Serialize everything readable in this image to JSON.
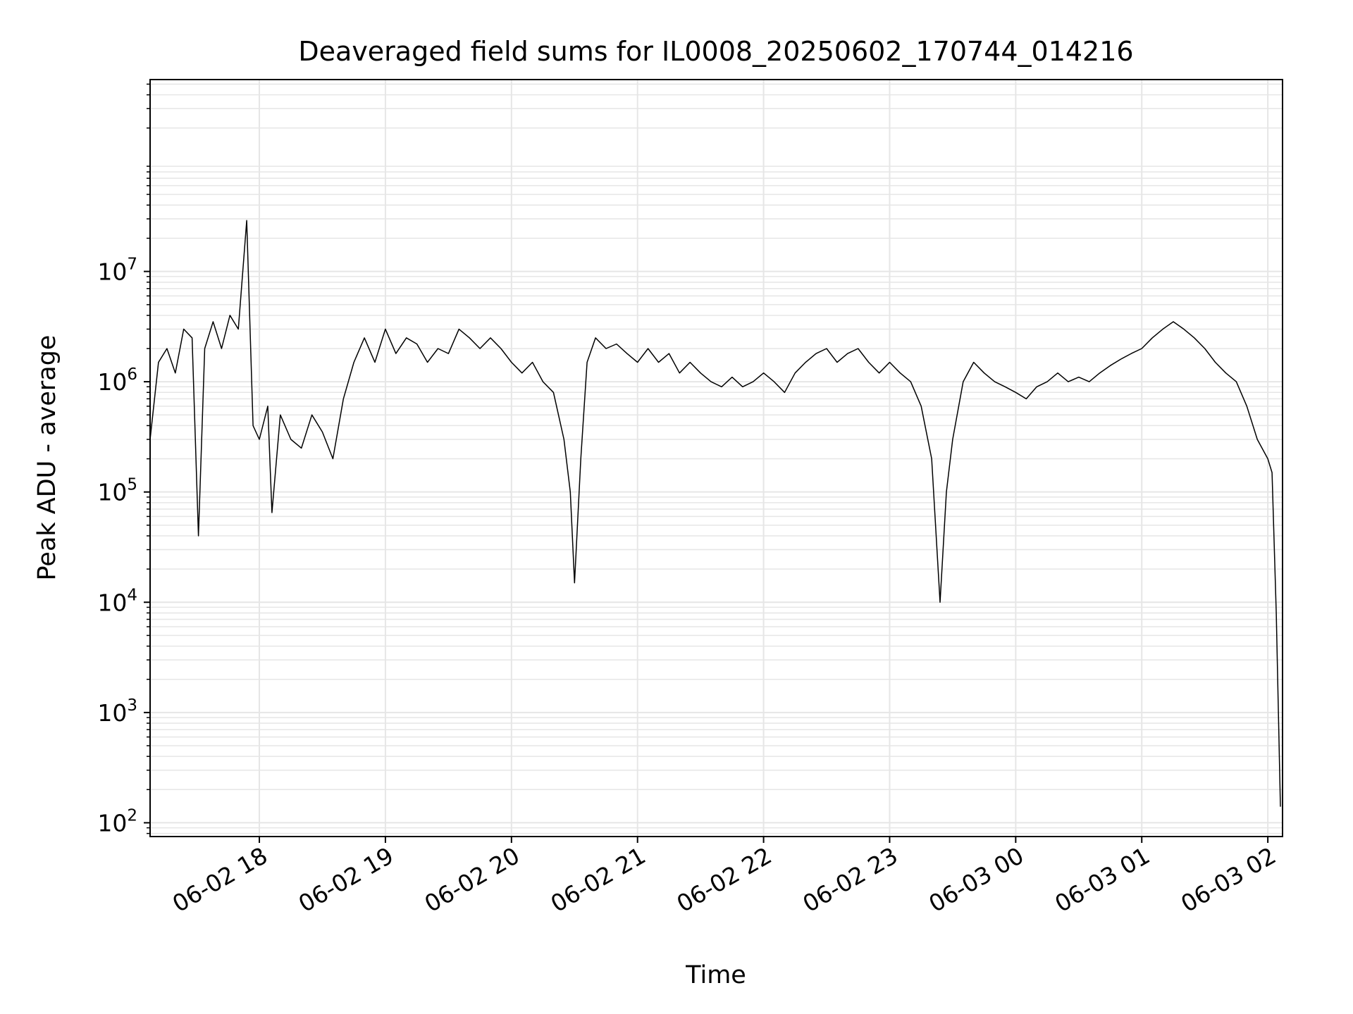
{
  "chart_data": {
    "type": "line",
    "title": "Deaveraged field sums for IL0008_20250602_170744_014216",
    "xlabel": "Time",
    "ylabel": "Peak ADU - average",
    "y_scale": "log",
    "ylim": [
      75,
      550000000
    ],
    "xlim": [
      "2025-06-02 17:08",
      "2025-06-03 02:07"
    ],
    "grid": true,
    "legend": "none",
    "line_color": "#000000",
    "grid_color": "#e6e6e6",
    "x_ticks": [
      {
        "t": "2025-06-02 18:00",
        "label": "06-02 18"
      },
      {
        "t": "2025-06-02 19:00",
        "label": "06-02 19"
      },
      {
        "t": "2025-06-02 20:00",
        "label": "06-02 20"
      },
      {
        "t": "2025-06-02 21:00",
        "label": "06-02 21"
      },
      {
        "t": "2025-06-02 22:00",
        "label": "06-02 22"
      },
      {
        "t": "2025-06-02 23:00",
        "label": "06-02 23"
      },
      {
        "t": "2025-06-03 00:00",
        "label": "06-03 00"
      },
      {
        "t": "2025-06-03 01:00",
        "label": "06-03 01"
      },
      {
        "t": "2025-06-03 02:00",
        "label": "06-03 02"
      }
    ],
    "y_ticks": [
      {
        "value": 100,
        "base": "10",
        "exp": "2"
      },
      {
        "value": 1000,
        "base": "10",
        "exp": "3"
      },
      {
        "value": 10000,
        "base": "10",
        "exp": "4"
      },
      {
        "value": 100000,
        "base": "10",
        "exp": "5"
      },
      {
        "value": 1000000,
        "base": "10",
        "exp": "6"
      },
      {
        "value": 10000000,
        "base": "10",
        "exp": "7"
      }
    ],
    "series": [
      {
        "points": [
          [
            "2025-06-02 17:08",
            300000
          ],
          [
            "2025-06-02 17:12",
            1500000
          ],
          [
            "2025-06-02 17:16",
            2000000
          ],
          [
            "2025-06-02 17:20",
            1200000
          ],
          [
            "2025-06-02 17:24",
            3000000
          ],
          [
            "2025-06-02 17:28",
            2500000
          ],
          [
            "2025-06-02 17:31",
            40000
          ],
          [
            "2025-06-02 17:34",
            2000000
          ],
          [
            "2025-06-02 17:38",
            3500000
          ],
          [
            "2025-06-02 17:42",
            2000000
          ],
          [
            "2025-06-02 17:46",
            4000000
          ],
          [
            "2025-06-02 17:50",
            3000000
          ],
          [
            "2025-06-02 17:54",
            29000000
          ],
          [
            "2025-06-02 17:57",
            400000
          ],
          [
            "2025-06-02 18:00",
            300000
          ],
          [
            "2025-06-02 18:04",
            600000
          ],
          [
            "2025-06-02 18:06",
            65000
          ],
          [
            "2025-06-02 18:10",
            500000
          ],
          [
            "2025-06-02 18:15",
            300000
          ],
          [
            "2025-06-02 18:20",
            250000
          ],
          [
            "2025-06-02 18:25",
            500000
          ],
          [
            "2025-06-02 18:30",
            350000
          ],
          [
            "2025-06-02 18:35",
            200000
          ],
          [
            "2025-06-02 18:40",
            700000
          ],
          [
            "2025-06-02 18:45",
            1500000
          ],
          [
            "2025-06-02 18:50",
            2500000
          ],
          [
            "2025-06-02 18:55",
            1500000
          ],
          [
            "2025-06-02 19:00",
            3000000
          ],
          [
            "2025-06-02 19:05",
            1800000
          ],
          [
            "2025-06-02 19:10",
            2500000
          ],
          [
            "2025-06-02 19:15",
            2200000
          ],
          [
            "2025-06-02 19:20",
            1500000
          ],
          [
            "2025-06-02 19:25",
            2000000
          ],
          [
            "2025-06-02 19:30",
            1800000
          ],
          [
            "2025-06-02 19:35",
            3000000
          ],
          [
            "2025-06-02 19:40",
            2500000
          ],
          [
            "2025-06-02 19:45",
            2000000
          ],
          [
            "2025-06-02 19:50",
            2500000
          ],
          [
            "2025-06-02 19:55",
            2000000
          ],
          [
            "2025-06-02 20:00",
            1500000
          ],
          [
            "2025-06-02 20:05",
            1200000
          ],
          [
            "2025-06-02 20:10",
            1500000
          ],
          [
            "2025-06-02 20:15",
            1000000
          ],
          [
            "2025-06-02 20:20",
            800000
          ],
          [
            "2025-06-02 20:25",
            300000
          ],
          [
            "2025-06-02 20:28",
            100000
          ],
          [
            "2025-06-02 20:30",
            15000
          ],
          [
            "2025-06-02 20:33",
            200000
          ],
          [
            "2025-06-02 20:36",
            1500000
          ],
          [
            "2025-06-02 20:40",
            2500000
          ],
          [
            "2025-06-02 20:45",
            2000000
          ],
          [
            "2025-06-02 20:50",
            2200000
          ],
          [
            "2025-06-02 20:55",
            1800000
          ],
          [
            "2025-06-02 21:00",
            1500000
          ],
          [
            "2025-06-02 21:05",
            2000000
          ],
          [
            "2025-06-02 21:10",
            1500000
          ],
          [
            "2025-06-02 21:15",
            1800000
          ],
          [
            "2025-06-02 21:20",
            1200000
          ],
          [
            "2025-06-02 21:25",
            1500000
          ],
          [
            "2025-06-02 21:30",
            1200000
          ],
          [
            "2025-06-02 21:35",
            1000000
          ],
          [
            "2025-06-02 21:40",
            900000
          ],
          [
            "2025-06-02 21:45",
            1100000
          ],
          [
            "2025-06-02 21:50",
            900000
          ],
          [
            "2025-06-02 21:55",
            1000000
          ],
          [
            "2025-06-02 22:00",
            1200000
          ],
          [
            "2025-06-02 22:05",
            1000000
          ],
          [
            "2025-06-02 22:10",
            800000
          ],
          [
            "2025-06-02 22:15",
            1200000
          ],
          [
            "2025-06-02 22:20",
            1500000
          ],
          [
            "2025-06-02 22:25",
            1800000
          ],
          [
            "2025-06-02 22:30",
            2000000
          ],
          [
            "2025-06-02 22:35",
            1500000
          ],
          [
            "2025-06-02 22:40",
            1800000
          ],
          [
            "2025-06-02 22:45",
            2000000
          ],
          [
            "2025-06-02 22:50",
            1500000
          ],
          [
            "2025-06-02 22:55",
            1200000
          ],
          [
            "2025-06-02 23:00",
            1500000
          ],
          [
            "2025-06-02 23:05",
            1200000
          ],
          [
            "2025-06-02 23:10",
            1000000
          ],
          [
            "2025-06-02 23:15",
            600000
          ],
          [
            "2025-06-02 23:20",
            200000
          ],
          [
            "2025-06-02 23:24",
            10000
          ],
          [
            "2025-06-02 23:27",
            100000
          ],
          [
            "2025-06-02 23:30",
            300000
          ],
          [
            "2025-06-02 23:35",
            1000000
          ],
          [
            "2025-06-02 23:40",
            1500000
          ],
          [
            "2025-06-02 23:45",
            1200000
          ],
          [
            "2025-06-02 23:50",
            1000000
          ],
          [
            "2025-06-02 23:55",
            900000
          ],
          [
            "2025-06-03 00:00",
            800000
          ],
          [
            "2025-06-03 00:05",
            700000
          ],
          [
            "2025-06-03 00:10",
            900000
          ],
          [
            "2025-06-03 00:15",
            1000000
          ],
          [
            "2025-06-03 00:20",
            1200000
          ],
          [
            "2025-06-03 00:25",
            1000000
          ],
          [
            "2025-06-03 00:30",
            1100000
          ],
          [
            "2025-06-03 00:35",
            1000000
          ],
          [
            "2025-06-03 00:40",
            1200000
          ],
          [
            "2025-06-03 00:45",
            1400000
          ],
          [
            "2025-06-03 00:50",
            1600000
          ],
          [
            "2025-06-03 00:55",
            1800000
          ],
          [
            "2025-06-03 01:00",
            2000000
          ],
          [
            "2025-06-03 01:05",
            2500000
          ],
          [
            "2025-06-03 01:10",
            3000000
          ],
          [
            "2025-06-03 01:15",
            3500000
          ],
          [
            "2025-06-03 01:20",
            3000000
          ],
          [
            "2025-06-03 01:25",
            2500000
          ],
          [
            "2025-06-03 01:30",
            2000000
          ],
          [
            "2025-06-03 01:35",
            1500000
          ],
          [
            "2025-06-03 01:40",
            1200000
          ],
          [
            "2025-06-03 01:45",
            1000000
          ],
          [
            "2025-06-03 01:50",
            600000
          ],
          [
            "2025-06-03 01:55",
            300000
          ],
          [
            "2025-06-03 02:00",
            200000
          ],
          [
            "2025-06-03 02:02",
            150000
          ],
          [
            "2025-06-03 02:04",
            8000
          ],
          [
            "2025-06-03 02:06",
            140
          ]
        ]
      }
    ]
  }
}
